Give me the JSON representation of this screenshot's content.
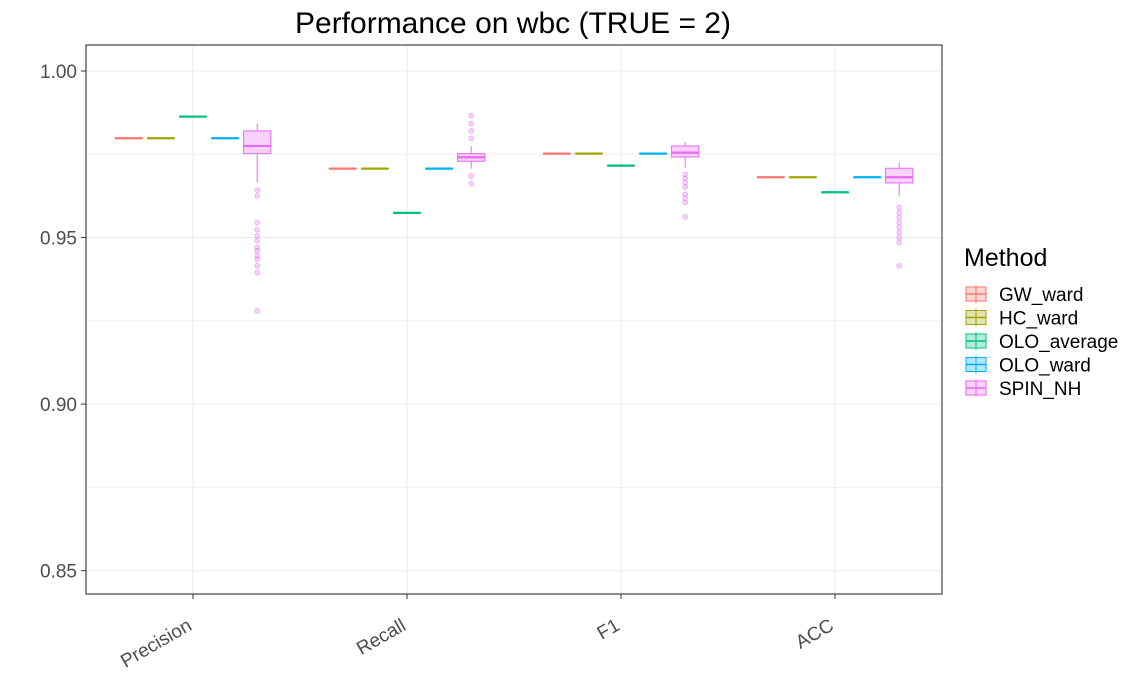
{
  "chart_data": {
    "type": "boxplot",
    "title": "Performance on wbc (TRUE = 2)",
    "xlabel": "",
    "ylabel": "",
    "ylim": [
      0.843,
      1.0078
    ],
    "y_ticks": [
      0.85,
      0.9,
      0.95,
      1.0
    ],
    "y_tick_labels": [
      "0.85",
      "0.90",
      "0.95",
      "1.00"
    ],
    "grid": true,
    "legend": {
      "title": "Method",
      "position": "right"
    },
    "categories": [
      "Precision",
      "Recall",
      "F1",
      "ACC"
    ],
    "series": [
      {
        "name": "GW_ward",
        "color": "#F8766D",
        "boxes": [
          {
            "min": 0.9798,
            "q1": 0.9798,
            "median": 0.9798,
            "q3": 0.9798,
            "max": 0.9798,
            "outliers": []
          },
          {
            "min": 0.9707,
            "q1": 0.9707,
            "median": 0.9707,
            "q3": 0.9707,
            "max": 0.9707,
            "outliers": []
          },
          {
            "min": 0.9752,
            "q1": 0.9752,
            "median": 0.9752,
            "q3": 0.9752,
            "max": 0.9752,
            "outliers": []
          },
          {
            "min": 0.9681,
            "q1": 0.9681,
            "median": 0.9681,
            "q3": 0.9681,
            "max": 0.9681,
            "outliers": []
          }
        ]
      },
      {
        "name": "HC_ward",
        "color": "#A3A500",
        "boxes": [
          {
            "min": 0.9798,
            "q1": 0.9798,
            "median": 0.9798,
            "q3": 0.9798,
            "max": 0.9798,
            "outliers": []
          },
          {
            "min": 0.9707,
            "q1": 0.9707,
            "median": 0.9707,
            "q3": 0.9707,
            "max": 0.9707,
            "outliers": []
          },
          {
            "min": 0.9752,
            "q1": 0.9752,
            "median": 0.9752,
            "q3": 0.9752,
            "max": 0.9752,
            "outliers": []
          },
          {
            "min": 0.9681,
            "q1": 0.9681,
            "median": 0.9681,
            "q3": 0.9681,
            "max": 0.9681,
            "outliers": []
          }
        ]
      },
      {
        "name": "OLO_average",
        "color": "#00BF7D",
        "boxes": [
          {
            "min": 0.9863,
            "q1": 0.9863,
            "median": 0.9863,
            "q3": 0.9863,
            "max": 0.9863,
            "outliers": []
          },
          {
            "min": 0.9574,
            "q1": 0.9574,
            "median": 0.9574,
            "q3": 0.9574,
            "max": 0.9574,
            "outliers": []
          },
          {
            "min": 0.9716,
            "q1": 0.9716,
            "median": 0.9716,
            "q3": 0.9716,
            "max": 0.9716,
            "outliers": []
          },
          {
            "min": 0.9636,
            "q1": 0.9636,
            "median": 0.9636,
            "q3": 0.9636,
            "max": 0.9636,
            "outliers": []
          }
        ]
      },
      {
        "name": "OLO_ward",
        "color": "#00B0F6",
        "boxes": [
          {
            "min": 0.9798,
            "q1": 0.9798,
            "median": 0.9798,
            "q3": 0.9798,
            "max": 0.9798,
            "outliers": []
          },
          {
            "min": 0.9707,
            "q1": 0.9707,
            "median": 0.9707,
            "q3": 0.9707,
            "max": 0.9707,
            "outliers": []
          },
          {
            "min": 0.9752,
            "q1": 0.9752,
            "median": 0.9752,
            "q3": 0.9752,
            "max": 0.9752,
            "outliers": []
          },
          {
            "min": 0.9681,
            "q1": 0.9681,
            "median": 0.9681,
            "q3": 0.9681,
            "max": 0.9681,
            "outliers": []
          }
        ]
      },
      {
        "name": "SPIN_NH",
        "color": "#E76BF3",
        "boxes": [
          {
            "min": 0.9665,
            "q1": 0.9752,
            "median": 0.9775,
            "q3": 0.982,
            "max": 0.9843,
            "outliers": [
              0.9642,
              0.9625,
              0.9545,
              0.9523,
              0.9505,
              0.949,
              0.947,
              0.946,
              0.9445,
              0.9435,
              0.9415,
              0.9395,
              0.928
            ]
          },
          {
            "min": 0.9707,
            "q1": 0.9729,
            "median": 0.9741,
            "q3": 0.9752,
            "max": 0.9775,
            "outliers": [
              0.9798,
              0.982,
              0.9842,
              0.9866,
              0.9685,
              0.9662
            ]
          },
          {
            "min": 0.971,
            "q1": 0.9742,
            "median": 0.9755,
            "q3": 0.9775,
            "max": 0.9787,
            "outliers": [
              0.969,
              0.9678,
              0.9665,
              0.9652,
              0.963,
              0.9618,
              0.9605,
              0.9562
            ]
          },
          {
            "min": 0.9625,
            "q1": 0.9664,
            "median": 0.9681,
            "q3": 0.9708,
            "max": 0.9725,
            "outliers": [
              0.959,
              0.9575,
              0.956,
              0.9545,
              0.953,
              0.9515,
              0.95,
              0.9485,
              0.9415
            ]
          }
        ]
      }
    ]
  }
}
